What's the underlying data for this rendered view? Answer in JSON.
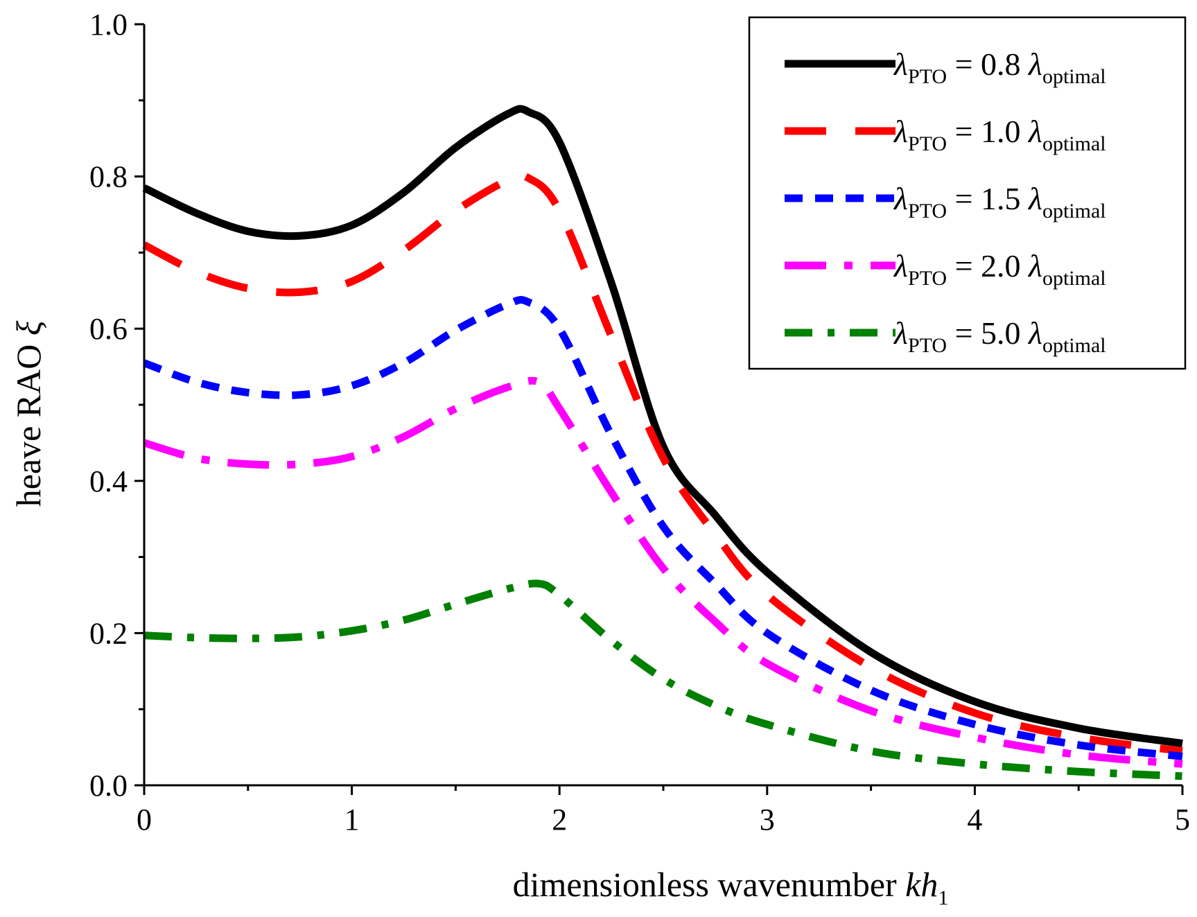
{
  "chart_data": {
    "type": "line",
    "title": "",
    "xlabel": {
      "text": "dimensionless wavenumber ",
      "italic": "kh",
      "subscript": "1"
    },
    "ylabel": {
      "text": "heave RAO ",
      "symbol": "ξ"
    },
    "xlim": [
      0,
      5
    ],
    "ylim": [
      0,
      1.0
    ],
    "xticks": [
      0,
      1,
      2,
      3,
      4,
      5
    ],
    "xtick_labels": [
      "0",
      "1",
      "2",
      "3",
      "4",
      "5"
    ],
    "yticks": [
      0,
      0.2,
      0.4,
      0.6,
      0.8,
      1.0
    ],
    "ytick_labels": [
      "0.0",
      "0.2",
      "0.4",
      "0.6",
      "0.8",
      "1.0"
    ],
    "legend_position": "top-right",
    "grid": false,
    "series": [
      {
        "name": "λPTO = 0.8 λoptimal",
        "legend": {
          "lambda": "λ",
          "sub1": "PTO",
          "mid": " = 0.8 ",
          "sub2": "optimal"
        },
        "color": "#000000",
        "style": "solid",
        "x": [
          0,
          0.25,
          0.5,
          0.75,
          1.0,
          1.25,
          1.5,
          1.75,
          1.85,
          2.0,
          2.25,
          2.5,
          2.75,
          3.0,
          3.5,
          4.0,
          4.5,
          5.0
        ],
        "values": [
          0.785,
          0.752,
          0.728,
          0.722,
          0.736,
          0.779,
          0.838,
          0.882,
          0.885,
          0.845,
          0.66,
          0.445,
          0.355,
          0.28,
          0.175,
          0.11,
          0.075,
          0.055
        ]
      },
      {
        "name": "λPTO = 1.0 λoptimal",
        "legend": {
          "lambda": "λ",
          "sub1": "PTO",
          "mid": " = 1.0 ",
          "sub2": "optimal"
        },
        "color": "#ff0000",
        "style": "dash",
        "x": [
          0,
          0.25,
          0.5,
          0.75,
          1.0,
          1.25,
          1.5,
          1.75,
          1.85,
          2.0,
          2.25,
          2.5,
          2.75,
          3.0,
          3.5,
          4.0,
          4.5,
          5.0
        ],
        "values": [
          0.71,
          0.675,
          0.653,
          0.648,
          0.662,
          0.703,
          0.755,
          0.795,
          0.798,
          0.755,
          0.59,
          0.43,
          0.33,
          0.25,
          0.155,
          0.095,
          0.063,
          0.045
        ]
      },
      {
        "name": "λPTO = 1.5 λoptimal",
        "legend": {
          "lambda": "λ",
          "sub1": "PTO",
          "mid": " = 1.5 ",
          "sub2": "optimal"
        },
        "color": "#0000ff",
        "style": "short-dash",
        "x": [
          0,
          0.25,
          0.5,
          0.75,
          1.0,
          1.25,
          1.5,
          1.75,
          1.85,
          2.0,
          2.25,
          2.5,
          2.75,
          3.0,
          3.5,
          4.0,
          4.5,
          5.0
        ],
        "values": [
          0.555,
          0.53,
          0.516,
          0.513,
          0.525,
          0.555,
          0.598,
          0.632,
          0.635,
          0.6,
          0.46,
          0.34,
          0.265,
          0.2,
          0.125,
          0.08,
          0.053,
          0.038
        ]
      },
      {
        "name": "λPTO = 2.0 λoptimal",
        "legend": {
          "lambda": "λ",
          "sub1": "PTO",
          "mid": " = 2.0 ",
          "sub2": "optimal"
        },
        "color": "#ff00ff",
        "style": "dash-dot",
        "x": [
          0,
          0.25,
          0.5,
          0.75,
          1.0,
          1.25,
          1.5,
          1.75,
          1.9,
          2.0,
          2.25,
          2.5,
          2.75,
          3.0,
          3.5,
          4.0,
          4.5,
          5.0
        ],
        "values": [
          0.45,
          0.43,
          0.422,
          0.422,
          0.432,
          0.458,
          0.495,
          0.523,
          0.53,
          0.495,
          0.385,
          0.285,
          0.215,
          0.16,
          0.098,
          0.063,
          0.04,
          0.028
        ]
      },
      {
        "name": "λPTO = 5.0 λoptimal",
        "legend": {
          "lambda": "λ",
          "sub1": "PTO",
          "mid": " = 5.0 ",
          "sub2": "optimal"
        },
        "color": "#008000",
        "style": "dash-dot-short",
        "x": [
          0,
          0.25,
          0.5,
          0.75,
          1.0,
          1.25,
          1.5,
          1.75,
          1.9,
          2.0,
          2.25,
          2.5,
          2.75,
          3.0,
          3.5,
          4.0,
          4.5,
          5.0
        ],
        "values": [
          0.197,
          0.194,
          0.193,
          0.195,
          0.203,
          0.217,
          0.238,
          0.258,
          0.265,
          0.25,
          0.19,
          0.14,
          0.105,
          0.08,
          0.045,
          0.028,
          0.018,
          0.012
        ]
      }
    ]
  }
}
